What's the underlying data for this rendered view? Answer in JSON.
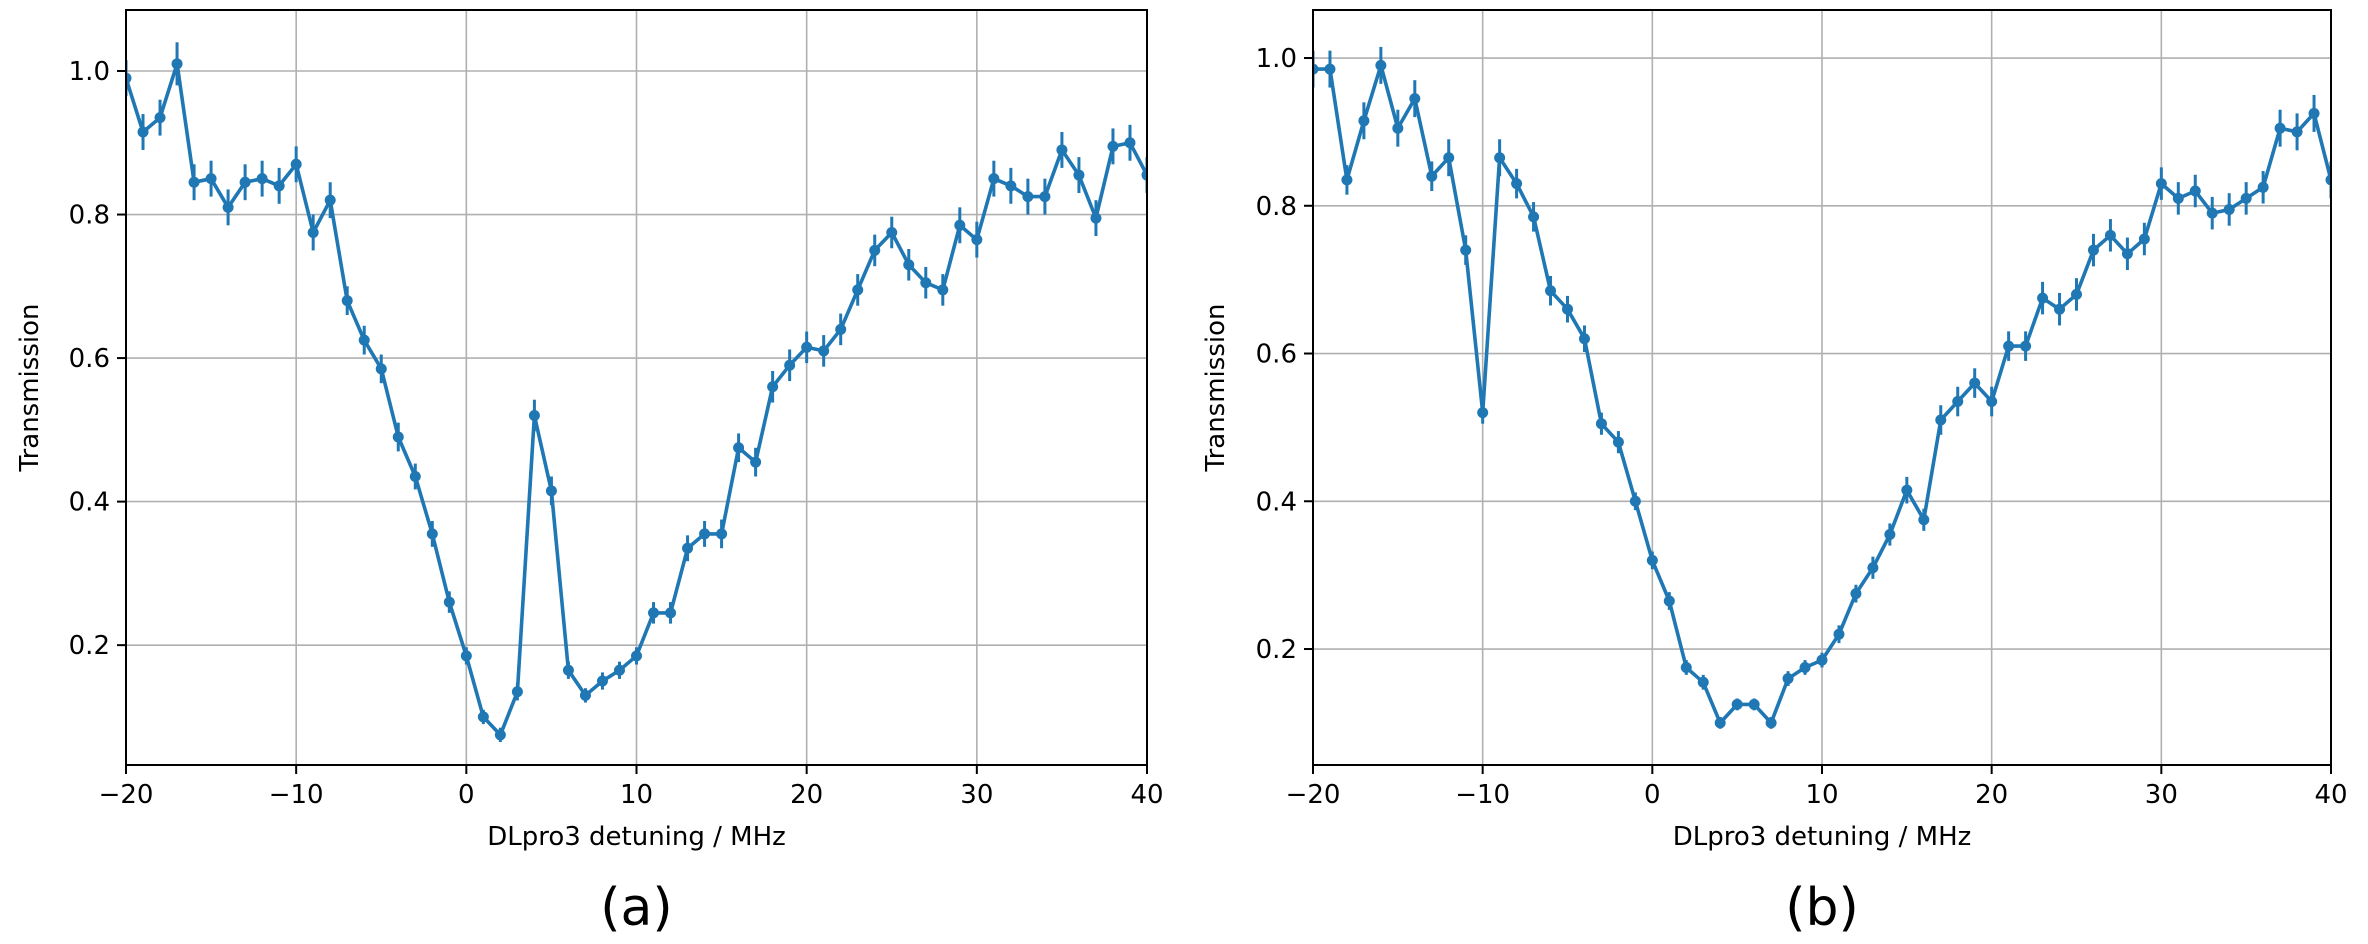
{
  "chart_data": [
    {
      "type": "line",
      "caption": "(a)",
      "xlabel": "DLpro3 detuning / MHz",
      "ylabel": "Transmission",
      "xlim": [
        -20,
        40
      ],
      "ylim": [
        0.033,
        1.085
      ],
      "xticks": [
        -20,
        -10,
        0,
        10,
        20,
        30,
        40
      ],
      "xtick_labels": [
        "−20",
        "−10",
        "0",
        "10",
        "20",
        "30",
        "40"
      ],
      "yticks": [
        0.2,
        0.4,
        0.6,
        0.8,
        1.0
      ],
      "ytick_labels": [
        "0.2",
        "0.4",
        "0.6",
        "0.8",
        "1.0"
      ],
      "grid": true,
      "color": "#1f77b4",
      "error_bars": true,
      "x": [
        -20,
        -19,
        -18,
        -17,
        -16,
        -15,
        -14,
        -13,
        -12,
        -11,
        -10,
        -9,
        -8,
        -7,
        -6,
        -5,
        -4,
        -3,
        -2,
        -1,
        0,
        1,
        2,
        3,
        4,
        5,
        6,
        7,
        8,
        9,
        10,
        11,
        12,
        13,
        14,
        15,
        16,
        17,
        18,
        19,
        20,
        21,
        22,
        23,
        24,
        25,
        26,
        27,
        28,
        29,
        30,
        31,
        32,
        33,
        34,
        35,
        36,
        37,
        38,
        39,
        40
      ],
      "y": [
        0.99,
        0.915,
        0.935,
        1.01,
        0.845,
        0.85,
        0.81,
        0.845,
        0.85,
        0.84,
        0.87,
        0.775,
        0.82,
        0.68,
        0.625,
        0.585,
        0.49,
        0.435,
        0.355,
        0.26,
        0.185,
        0.1,
        0.075,
        0.135,
        0.52,
        0.415,
        0.165,
        0.13,
        0.15,
        0.165,
        0.185,
        0.245,
        0.245,
        0.335,
        0.355,
        0.355,
        0.475,
        0.455,
        0.56,
        0.59,
        0.615,
        0.61,
        0.64,
        0.695,
        0.75,
        0.775,
        0.73,
        0.705,
        0.695,
        0.785,
        0.765,
        0.85,
        0.84,
        0.825,
        0.825,
        0.89,
        0.855,
        0.795,
        0.895,
        0.9,
        0.855
      ],
      "yerr": [
        0.025,
        0.025,
        0.025,
        0.03,
        0.025,
        0.025,
        0.025,
        0.025,
        0.025,
        0.025,
        0.025,
        0.025,
        0.025,
        0.02,
        0.02,
        0.02,
        0.02,
        0.018,
        0.018,
        0.015,
        0.012,
        0.01,
        0.01,
        0.012,
        0.022,
        0.02,
        0.012,
        0.01,
        0.012,
        0.012,
        0.012,
        0.015,
        0.015,
        0.018,
        0.018,
        0.02,
        0.02,
        0.02,
        0.022,
        0.022,
        0.022,
        0.022,
        0.022,
        0.022,
        0.022,
        0.022,
        0.022,
        0.022,
        0.022,
        0.025,
        0.025,
        0.025,
        0.025,
        0.025,
        0.025,
        0.025,
        0.025,
        0.025,
        0.025,
        0.025,
        0.025
      ]
    },
    {
      "type": "line",
      "caption": "(b)",
      "xlabel": "DLpro3 detuning / MHz",
      "ylabel": "Transmission",
      "xlim": [
        -20,
        40
      ],
      "ylim": [
        0.043,
        1.065
      ],
      "xticks": [
        -20,
        -10,
        0,
        10,
        20,
        30,
        40
      ],
      "xtick_labels": [
        "−20",
        "−10",
        "0",
        "10",
        "20",
        "30",
        "40"
      ],
      "yticks": [
        0.2,
        0.4,
        0.6,
        0.8,
        1.0
      ],
      "ytick_labels": [
        "0.2",
        "0.4",
        "0.6",
        "0.8",
        "1.0"
      ],
      "grid": true,
      "color": "#1f77b4",
      "error_bars": true,
      "x": [
        -20,
        -19,
        -18,
        -17,
        -16,
        -15,
        -14,
        -13,
        -12,
        -11,
        -10,
        -9,
        -8,
        -7,
        -6,
        -5,
        -4,
        -3,
        -2,
        -1,
        0,
        1,
        2,
        3,
        4,
        5,
        6,
        7,
        8,
        9,
        10,
        11,
        12,
        13,
        14,
        15,
        16,
        17,
        18,
        19,
        20,
        21,
        22,
        23,
        24,
        25,
        26,
        27,
        28,
        29,
        30,
        31,
        32,
        33,
        34,
        35,
        36,
        37,
        38,
        39,
        40
      ],
      "y": [
        0.985,
        0.985,
        0.835,
        0.915,
        0.99,
        0.905,
        0.945,
        0.84,
        0.865,
        0.74,
        0.52,
        0.865,
        0.83,
        0.785,
        0.685,
        0.66,
        0.62,
        0.505,
        0.48,
        0.4,
        0.32,
        0.265,
        0.175,
        0.155,
        0.1,
        0.125,
        0.125,
        0.1,
        0.16,
        0.175,
        0.185,
        0.22,
        0.275,
        0.31,
        0.355,
        0.415,
        0.375,
        0.51,
        0.535,
        0.56,
        0.535,
        0.61,
        0.61,
        0.675,
        0.66,
        0.68,
        0.74,
        0.76,
        0.735,
        0.755,
        0.83,
        0.81,
        0.82,
        0.79,
        0.795,
        0.81,
        0.825,
        0.905,
        0.9,
        0.925,
        0.835
      ],
      "yerr": [
        0.025,
        0.025,
        0.02,
        0.025,
        0.025,
        0.025,
        0.025,
        0.02,
        0.025,
        0.02,
        0.015,
        0.025,
        0.02,
        0.02,
        0.02,
        0.018,
        0.018,
        0.015,
        0.015,
        0.012,
        0.012,
        0.012,
        0.01,
        0.01,
        0.008,
        0.008,
        0.008,
        0.008,
        0.01,
        0.01,
        0.01,
        0.012,
        0.012,
        0.015,
        0.015,
        0.018,
        0.015,
        0.02,
        0.02,
        0.02,
        0.02,
        0.02,
        0.02,
        0.022,
        0.022,
        0.022,
        0.022,
        0.022,
        0.022,
        0.022,
        0.022,
        0.022,
        0.022,
        0.022,
        0.022,
        0.022,
        0.022,
        0.025,
        0.025,
        0.025,
        0.025
      ]
    }
  ]
}
